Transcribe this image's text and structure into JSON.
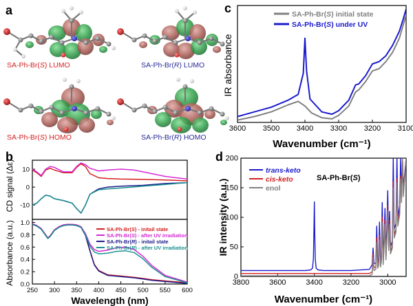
{
  "panels": {
    "a": {
      "letter": "a",
      "captions": [
        {
          "prefix": "SA-Ph-Br(",
          "stereo": "S",
          "suffix": ") LUMO",
          "color": "#d42020"
        },
        {
          "prefix": "SA-Ph-Br(",
          "stereo": "R",
          "suffix": ") LUMO",
          "color": "#2a2a9a"
        },
        {
          "prefix": "SA-Ph-Br(",
          "stereo": "S",
          "suffix": ") HOMO",
          "color": "#d42020"
        },
        {
          "prefix": "SA-Ph-Br(",
          "stereo": "R",
          "suffix": ") HOMO",
          "color": "#2a2a9a"
        }
      ]
    },
    "b": {
      "letter": "b"
    },
    "c": {
      "letter": "c"
    },
    "d": {
      "letter": "d"
    }
  },
  "chart_data": [
    {
      "panel": "c",
      "type": "line",
      "xlabel": "Wavenumber (cm⁻¹)",
      "ylabel": "IR absorbance",
      "xlim": [
        3600,
        3100
      ],
      "x_ticks": [
        3600,
        3500,
        3400,
        3300,
        3200,
        3100
      ],
      "legend": "top-right",
      "series": [
        {
          "name": "SA-Ph-Br(S) initial state",
          "color": "#808080",
          "x": [
            3600,
            3550,
            3500,
            3450,
            3420,
            3400,
            3380,
            3350,
            3320,
            3300,
            3270,
            3250,
            3240,
            3220,
            3200,
            3180,
            3160,
            3140,
            3120,
            3110,
            3100
          ],
          "y": [
            0.02,
            0.05,
            0.09,
            0.15,
            0.18,
            0.14,
            0.08,
            0.04,
            0.03,
            0.06,
            0.14,
            0.26,
            0.28,
            0.35,
            0.44,
            0.46,
            0.52,
            0.6,
            0.72,
            0.82,
            0.92
          ]
        },
        {
          "name": "SA-Ph-Br(S) under UV",
          "color": "#1a1acd",
          "x": [
            3600,
            3550,
            3500,
            3450,
            3420,
            3405,
            3400,
            3395,
            3385,
            3350,
            3320,
            3300,
            3270,
            3250,
            3240,
            3220,
            3200,
            3180,
            3160,
            3140,
            3120,
            3110,
            3100
          ],
          "y": [
            0.05,
            0.09,
            0.13,
            0.19,
            0.24,
            0.42,
            0.72,
            0.44,
            0.2,
            0.09,
            0.07,
            0.1,
            0.19,
            0.32,
            0.33,
            0.4,
            0.5,
            0.52,
            0.57,
            0.66,
            0.78,
            0.87,
            0.97
          ]
        }
      ]
    },
    {
      "panel": "b-top",
      "type": "line",
      "ylabel": "CD signal (Δε)",
      "xlim": [
        250,
        600
      ],
      "ylim": [
        -18,
        15
      ],
      "y_ticks": [
        10,
        0,
        -10
      ],
      "series": [
        {
          "name": "SA-Ph-Br(S) - initail state",
          "color": "#d42020",
          "x": [
            250,
            260,
            270,
            280,
            290,
            300,
            320,
            340,
            350,
            360,
            370,
            380,
            400,
            420,
            450,
            500,
            550,
            600
          ],
          "y": [
            9.5,
            8.0,
            6.0,
            9.5,
            10.5,
            9.5,
            8.0,
            8.0,
            11.0,
            13.0,
            11.5,
            7.5,
            5.2,
            4.8,
            4.5,
            4.3,
            4.0,
            3.5
          ]
        },
        {
          "name": "SA-Ph-Br(S) - after UV irradiation",
          "color": "#d427d4",
          "x": [
            250,
            260,
            270,
            280,
            290,
            300,
            320,
            340,
            350,
            360,
            370,
            380,
            400,
            420,
            450,
            480,
            500,
            550,
            600
          ],
          "y": [
            10.0,
            8.5,
            6.5,
            10.0,
            11.5,
            11.0,
            8.5,
            8.5,
            11.5,
            13.5,
            12.5,
            10.5,
            9.0,
            9.5,
            10.0,
            9.5,
            8.5,
            6.0,
            4.5
          ]
        },
        {
          "name": "SA-Ph-Br(R) - initail state",
          "color": "#1a1a8a",
          "x": [
            250,
            260,
            270,
            280,
            290,
            300,
            320,
            340,
            350,
            360,
            370,
            380,
            400,
            420,
            450,
            500,
            550,
            600
          ],
          "y": [
            -10.0,
            -9.0,
            -6.5,
            -4.5,
            -5.0,
            -6.5,
            -7.5,
            -9.0,
            -12.0,
            -14.5,
            -10.0,
            -4.0,
            -1.0,
            0.0,
            0.5,
            1.0,
            2.0,
            2.5
          ]
        },
        {
          "name": "SA-Ph-Br(R) - after UV irradiation",
          "color": "#1a8f8f",
          "x": [
            250,
            260,
            270,
            280,
            290,
            300,
            320,
            340,
            350,
            360,
            370,
            380,
            400,
            420,
            450,
            500,
            550,
            600
          ],
          "y": [
            -10.0,
            -9.0,
            -6.5,
            -4.5,
            -5.0,
            -6.5,
            -7.5,
            -9.0,
            -12.0,
            -14.5,
            -10.0,
            -4.0,
            -1.5,
            -1.0,
            -0.5,
            0.5,
            1.5,
            2.5
          ]
        }
      ]
    },
    {
      "panel": "b-bottom",
      "type": "line",
      "xlabel": "Wavelength (nm)",
      "ylabel": "Absorbance (a.u.)",
      "xlim": [
        250,
        600
      ],
      "ylim": [
        0,
        1.05
      ],
      "x_ticks": [
        250,
        300,
        350,
        400,
        450,
        500,
        550,
        600
      ],
      "y_ticks": [
        0.0,
        0.2,
        0.4,
        0.6,
        0.8,
        1.0
      ],
      "legend": "bottom-right",
      "series": [
        {
          "name": "SA-Ph-Br(S) - initail state",
          "color": "#d42020",
          "x": [
            250,
            260,
            270,
            280,
            285,
            290,
            300,
            310,
            320,
            330,
            340,
            350,
            360,
            370,
            380,
            390,
            400,
            420,
            450,
            480,
            500,
            520,
            550,
            600
          ],
          "y": [
            0.98,
            0.95,
            0.9,
            0.8,
            0.75,
            0.78,
            0.88,
            0.93,
            0.96,
            0.97,
            0.97,
            0.96,
            0.93,
            0.8,
            0.55,
            0.32,
            0.22,
            0.15,
            0.13,
            0.11,
            0.09,
            0.07,
            0.05,
            0.02
          ]
        },
        {
          "name": "SA-Ph-Br(S) - after UV irradiation",
          "color": "#d427d4",
          "x": [
            250,
            260,
            270,
            280,
            285,
            290,
            300,
            310,
            320,
            330,
            340,
            350,
            360,
            370,
            380,
            390,
            400,
            420,
            440,
            460,
            480,
            500,
            520,
            550,
            600
          ],
          "y": [
            0.98,
            0.95,
            0.9,
            0.8,
            0.75,
            0.78,
            0.88,
            0.93,
            0.96,
            0.97,
            0.97,
            0.96,
            0.93,
            0.82,
            0.65,
            0.56,
            0.53,
            0.55,
            0.59,
            0.6,
            0.56,
            0.45,
            0.3,
            0.14,
            0.03
          ]
        },
        {
          "name": "SA-Ph-Br(R) - initail state",
          "color": "#1a1a8a",
          "x": [
            250,
            260,
            270,
            280,
            285,
            290,
            300,
            310,
            320,
            330,
            340,
            350,
            360,
            370,
            380,
            390,
            400,
            420,
            450,
            480,
            500,
            520,
            550,
            600
          ],
          "y": [
            0.97,
            0.94,
            0.89,
            0.79,
            0.74,
            0.77,
            0.87,
            0.92,
            0.95,
            0.96,
            0.96,
            0.95,
            0.92,
            0.79,
            0.54,
            0.31,
            0.21,
            0.14,
            0.12,
            0.1,
            0.08,
            0.06,
            0.04,
            0.01
          ]
        },
        {
          "name": "SA-Ph-Br(R) - after UV irradiation",
          "color": "#1a8f8f",
          "x": [
            250,
            260,
            270,
            280,
            285,
            290,
            300,
            310,
            320,
            330,
            340,
            350,
            360,
            370,
            380,
            390,
            400,
            420,
            440,
            460,
            480,
            500,
            520,
            550,
            600
          ],
          "y": [
            0.97,
            0.94,
            0.89,
            0.79,
            0.74,
            0.77,
            0.87,
            0.92,
            0.95,
            0.96,
            0.96,
            0.95,
            0.92,
            0.8,
            0.62,
            0.52,
            0.49,
            0.5,
            0.53,
            0.54,
            0.51,
            0.41,
            0.27,
            0.12,
            0.02
          ]
        }
      ]
    },
    {
      "panel": "d",
      "type": "line",
      "title": "SA-Ph-Br(S)",
      "xlabel": "Wavenumber (cm⁻¹)",
      "ylabel": "IR intensity (a.u.)",
      "xlim": [
        3800,
        2900
      ],
      "ylim": [
        0,
        200
      ],
      "x_ticks": [
        3800,
        3600,
        3400,
        3200,
        3000
      ],
      "y_ticks": [
        0,
        50,
        100,
        150,
        200
      ],
      "legend": "top-left",
      "series": [
        {
          "name": "trans-keto",
          "color": "#1a1acd",
          "x": [
            3800,
            3450,
            3420,
            3410,
            3405,
            3402,
            3400,
            3398,
            3395,
            3390,
            3380,
            3350,
            3200,
            3100,
            3085,
            3080,
            3075,
            3065,
            3060,
            3055,
            3050,
            3045,
            3040,
            3035,
            3030,
            3025,
            3020,
            3015,
            3010,
            3005,
            3000,
            2995,
            2990,
            2985,
            2975,
            2970,
            2965,
            2955,
            2950,
            2945,
            2935,
            2930,
            2925,
            2920,
            2915,
            2900
          ],
          "y": [
            10,
            10,
            11,
            14,
            30,
            80,
            126,
            80,
            30,
            14,
            11,
            10,
            10,
            12,
            20,
            48,
            22,
            22,
            85,
            24,
            30,
            92,
            26,
            35,
            125,
            30,
            65,
            115,
            40,
            80,
            145,
            55,
            110,
            50,
            60,
            200,
            80,
            90,
            200,
            100,
            120,
            200,
            140,
            200,
            150,
            200
          ]
        },
        {
          "name": "cis-keto",
          "color": "#d42020",
          "x": [
            3800,
            3100,
            3085,
            3080,
            3075,
            3065,
            3060,
            3055,
            3050,
            3045,
            3040,
            3035,
            3030,
            3025,
            3020,
            3015,
            3010,
            3005,
            3000,
            2995,
            2990,
            2985,
            2975,
            2970,
            2965,
            2955,
            2950,
            2945,
            2935,
            2930,
            2925,
            2920,
            2915,
            2900
          ],
          "y": [
            5,
            5,
            8,
            38,
            15,
            16,
            65,
            18,
            22,
            70,
            20,
            28,
            100,
            25,
            55,
            95,
            32,
            68,
            120,
            48,
            95,
            42,
            52,
            160,
            70,
            80,
            165,
            90,
            110,
            170,
            130,
            200,
            140,
            200
          ]
        },
        {
          "name": "enol",
          "color": "#808080",
          "x": [
            3800,
            3100,
            3085,
            3080,
            3075,
            3065,
            3060,
            3055,
            3050,
            3045,
            3040,
            3035,
            3030,
            3025,
            3020,
            3015,
            3010,
            3005,
            3000,
            2995,
            2990,
            2985,
            2975,
            2970,
            2965,
            2955,
            2950,
            2945,
            2935,
            2930,
            2925,
            2920,
            2915,
            2900
          ],
          "y": [
            1,
            1,
            4,
            32,
            10,
            12,
            58,
            14,
            18,
            62,
            16,
            24,
            92,
            20,
            50,
            88,
            28,
            62,
            112,
            44,
            88,
            38,
            48,
            150,
            65,
            75,
            158,
            85,
            105,
            165,
            125,
            200,
            135,
            200
          ]
        }
      ]
    }
  ]
}
